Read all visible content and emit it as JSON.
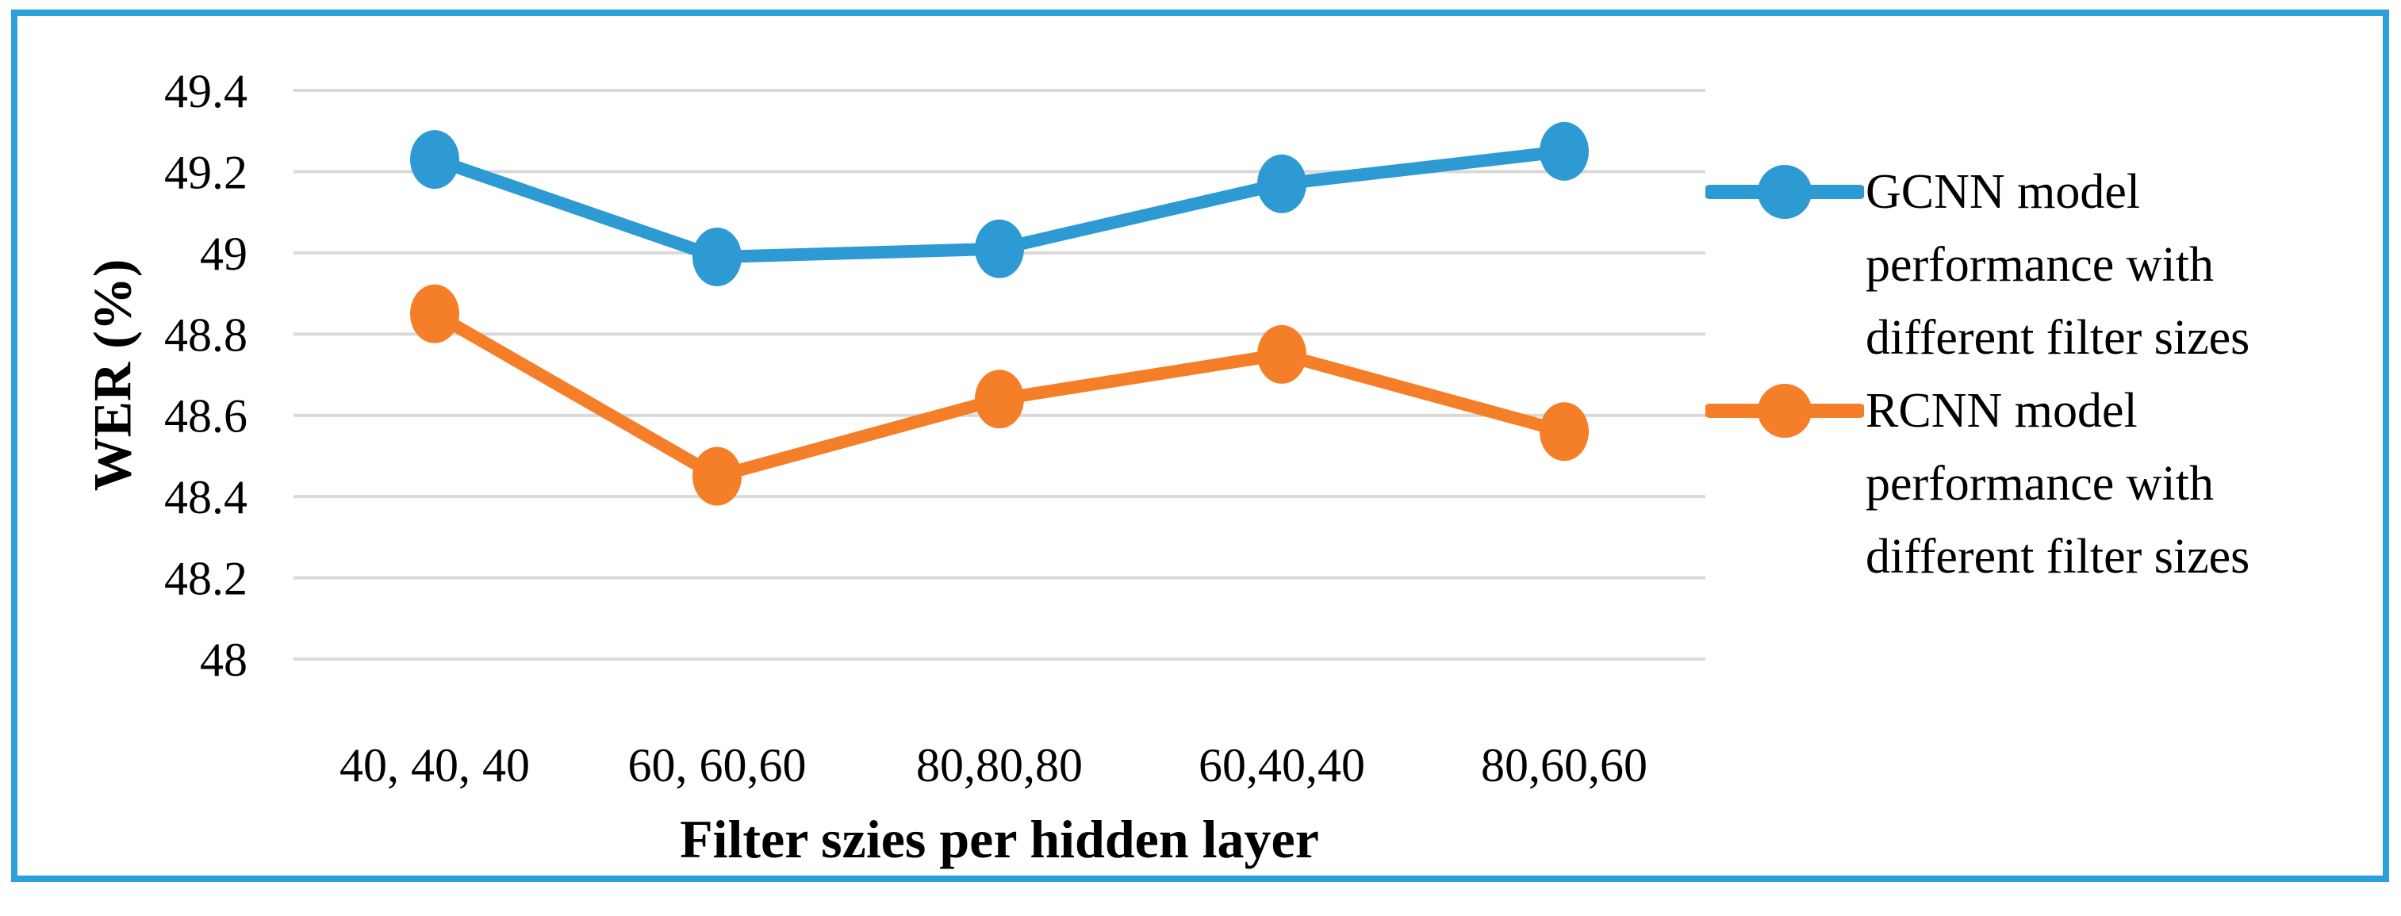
{
  "chart_data": {
    "type": "line",
    "title": "",
    "xlabel": "Filter szies per hidden layer",
    "ylabel": "WER (%)",
    "categories": [
      "40, 40, 40",
      "60, 60,60",
      "80,80,80",
      "60,40,40",
      "80,60,60"
    ],
    "series": [
      {
        "name": "GCNN model performance with different filter sizes",
        "legend_lines": [
          "GCNN model",
          "performance with",
          "different filter sizes"
        ],
        "color": "#2E9AD4",
        "values": [
          49.23,
          48.99,
          49.01,
          49.17,
          49.25
        ]
      },
      {
        "name": "RCNN model performance with different filter sizes",
        "legend_lines": [
          "RCNN model",
          "performance with",
          "different filter sizes"
        ],
        "color": "#F57E28",
        "values": [
          48.85,
          48.45,
          48.64,
          48.75,
          48.56
        ]
      }
    ],
    "ylim": [
      48,
      49.4
    ],
    "y_tick_step": 0.2,
    "y_tick_labels": [
      "49.4",
      "49.2",
      "49",
      "48.8",
      "48.6",
      "48.4",
      "48.2",
      "48"
    ],
    "grid": true,
    "legend_position": "right",
    "gridline_color": "#D9D9D9",
    "frame_border_color": "#2BA0DC",
    "text_color": "#000000"
  }
}
